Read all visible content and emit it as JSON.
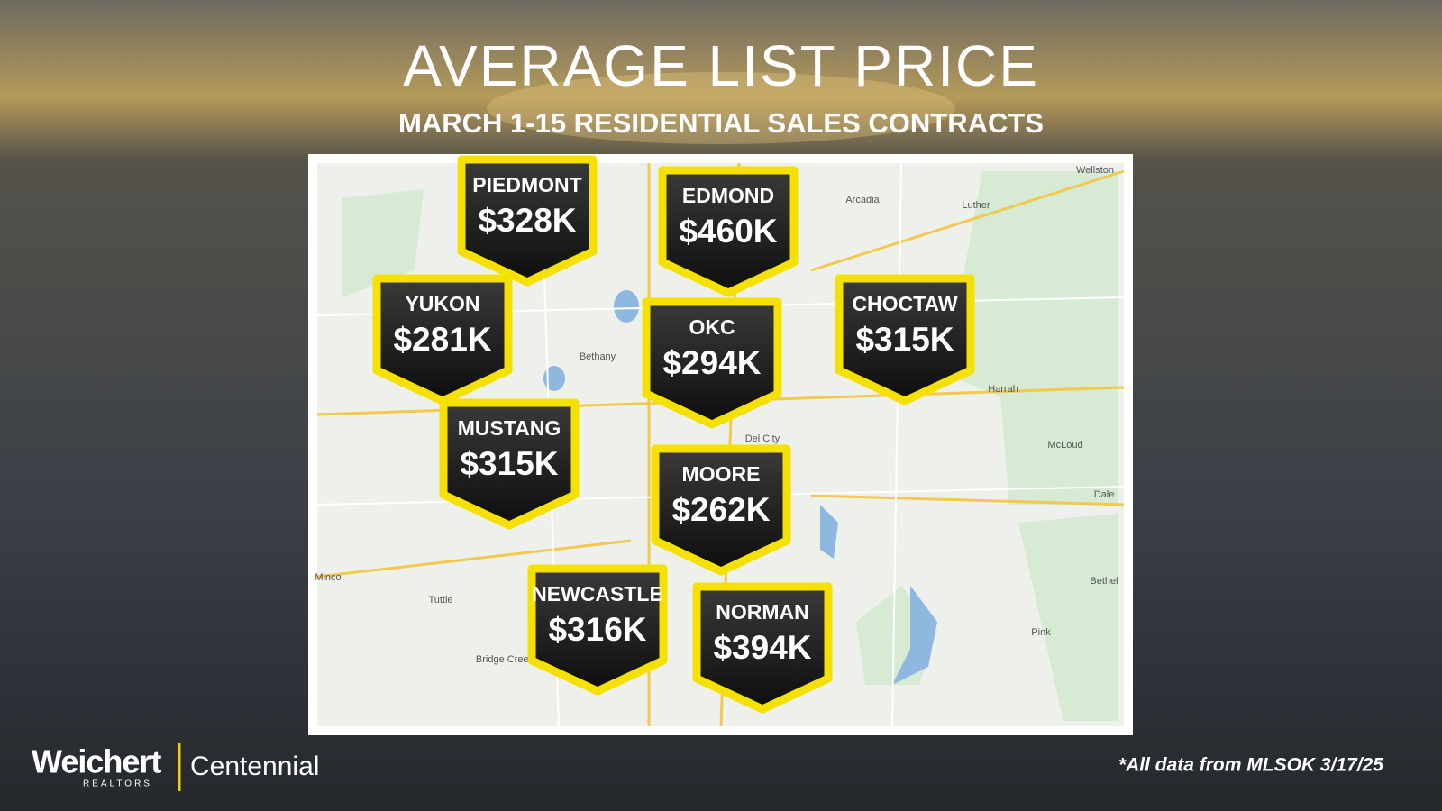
{
  "header": {
    "title": "AVERAGE LIST PRICE",
    "subtitle": "MARCH 1-15 RESIDENTIAL SALES CONTRACTS"
  },
  "markers": [
    {
      "name": "PIEDMONT",
      "price": "$328K"
    },
    {
      "name": "EDMOND",
      "price": "$460K"
    },
    {
      "name": "YUKON",
      "price": "$281K"
    },
    {
      "name": "OKC",
      "price": "$294K"
    },
    {
      "name": "CHOCTAW",
      "price": "$315K"
    },
    {
      "name": "MUSTANG",
      "price": "$315K"
    },
    {
      "name": "MOORE",
      "price": "$262K"
    },
    {
      "name": "NEWCASTLE",
      "price": "$316K"
    },
    {
      "name": "NORMAN",
      "price": "$394K"
    }
  ],
  "map_labels": [
    "Wellston",
    "Arcadia",
    "Luther",
    "Bethany",
    "Harrah",
    "Del City",
    "McLoud",
    "Dale",
    "Bethel",
    "Pink",
    "Tuttle",
    "Minco",
    "Bridge Creek"
  ],
  "footer": {
    "brand": "Weichert",
    "brand_sub": "REALTORS",
    "office": "Centennial",
    "source": "*All data from MLSOK 3/17/25"
  }
}
